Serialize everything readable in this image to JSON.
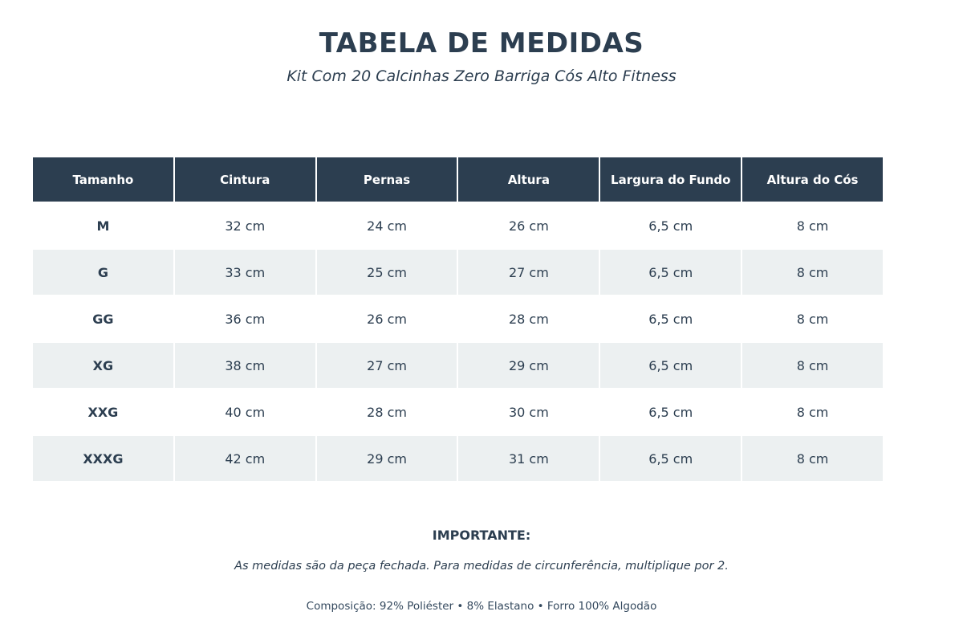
{
  "title": "TABELA DE MEDIDAS",
  "subtitle": "Kit Com 20 Calcinhas Zero Barriga Cós Alto Fitness",
  "table": {
    "headers": [
      "Tamanho",
      "Cintura",
      "Pernas",
      "Altura",
      "Largura do Fundo",
      "Altura do Cós"
    ],
    "rows": [
      [
        "M",
        "32 cm",
        "24 cm",
        "26 cm",
        "6,5 cm",
        "8 cm"
      ],
      [
        "G",
        "33 cm",
        "25 cm",
        "27 cm",
        "6,5 cm",
        "8 cm"
      ],
      [
        "GG",
        "36 cm",
        "26 cm",
        "28 cm",
        "6,5 cm",
        "8 cm"
      ],
      [
        "XG",
        "38 cm",
        "27 cm",
        "29 cm",
        "6,5 cm",
        "8 cm"
      ],
      [
        "XXG",
        "40 cm",
        "28 cm",
        "30 cm",
        "6,5 cm",
        "8 cm"
      ],
      [
        "XXXG",
        "42 cm",
        "29 cm",
        "31 cm",
        "6,5 cm",
        "8 cm"
      ]
    ]
  },
  "important": {
    "title": "IMPORTANTE:",
    "note": "As medidas são da peça fechada. Para medidas de circunferência, multiplique por 2."
  },
  "composition": "Composição: 92% Poliéster • 8% Elastano • Forro 100% Algodão",
  "colors": {
    "header_bg": "#2c3e50",
    "stripe_bg": "#ecf0f1",
    "text": "#2c3e50"
  }
}
